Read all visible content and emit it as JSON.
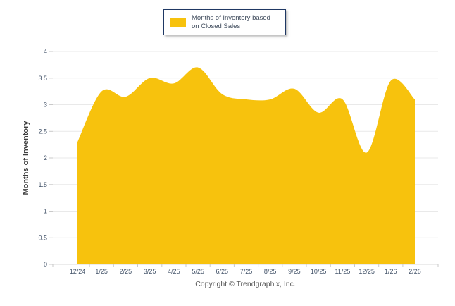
{
  "chart_data": {
    "type": "area",
    "categories": [
      "12/24",
      "1/25",
      "2/25",
      "3/25",
      "4/25",
      "5/25",
      "6/25",
      "7/25",
      "8/25",
      "9/25",
      "10/25",
      "11/25",
      "12/25",
      "1/26",
      "2/26"
    ],
    "values": [
      2.3,
      3.25,
      3.15,
      3.5,
      3.4,
      3.7,
      3.2,
      3.1,
      3.1,
      3.3,
      2.85,
      3.1,
      2.1,
      3.45,
      3.1
    ],
    "legend_label": "Months of Inventory based\non Closed Sales",
    "ylabel": "Months of Inventory",
    "ylim": [
      0,
      4
    ],
    "ytick_step": 0.5,
    "grid": true,
    "legend_position": "top-center",
    "area_color": "#f7c20d",
    "legend_border_color": "#1f3864",
    "gridline_color": "#e9e9e9",
    "axis_line_color": "#d9d9d9",
    "tick_color": "#c9c9c9",
    "tick_label_color": "#44546a"
  },
  "footer": {
    "copyright": "Copyright © Trendgraphix, Inc."
  }
}
